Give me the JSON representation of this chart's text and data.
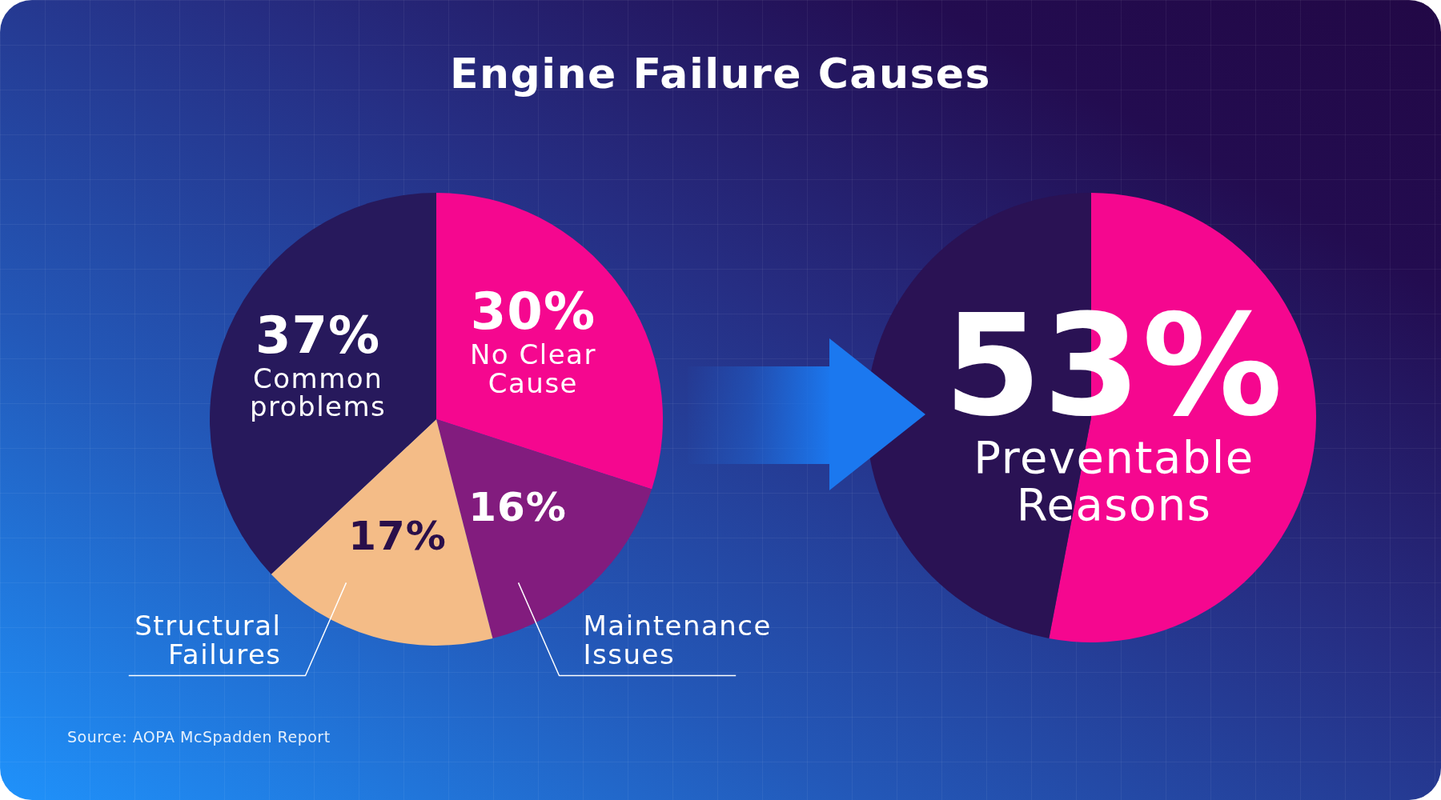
{
  "chart_data": [
    {
      "type": "pie",
      "title": "Engine Failure Causes",
      "categories": [
        "No Clear Cause",
        "Maintenance Issues",
        "Structural Failures",
        "Common problems"
      ],
      "values": [
        30,
        16,
        17,
        37
      ],
      "value_labels": [
        "30%",
        "16%",
        "17%",
        "37%"
      ],
      "colors": [
        "#f5078f",
        "#821c7e",
        "#f4bc87",
        "#27195c"
      ],
      "annotations": [
        "Source: AOPA McSpadden Report"
      ]
    },
    {
      "type": "pie",
      "categories": [
        "Preventable Reasons",
        null
      ],
      "values": [
        53,
        47
      ],
      "value_labels": [
        "53%",
        null
      ],
      "colors": [
        "#f5078f",
        "#2a1254"
      ]
    }
  ]
}
